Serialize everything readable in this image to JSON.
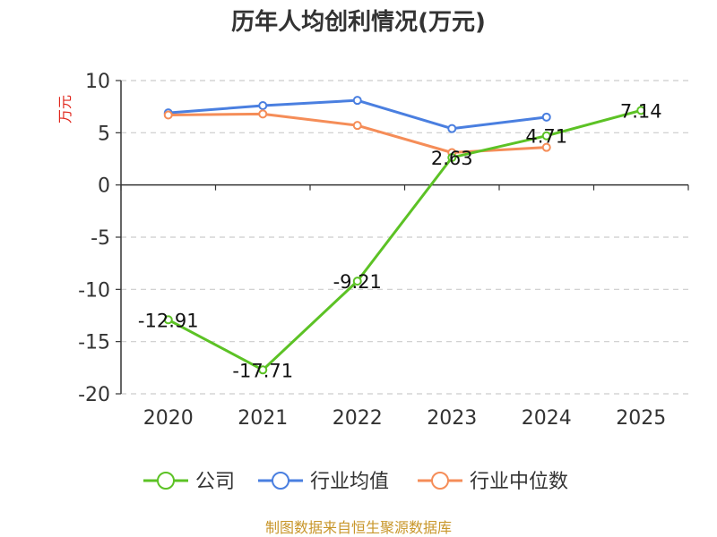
{
  "chart_data": {
    "type": "line",
    "title": "历年人均创利情况(万元)",
    "ylabel": "万元",
    "xlabel": "",
    "categories": [
      "2020",
      "2021",
      "2022",
      "2023",
      "2024",
      "2025"
    ],
    "ylim": [
      -20,
      10
    ],
    "yticks": [
      10,
      5,
      0,
      -5,
      -10,
      -15,
      -20
    ],
    "grid": true,
    "legend_position": "bottom",
    "series": [
      {
        "name": "公司",
        "color": "#5cc225",
        "values": [
          -12.91,
          -17.71,
          -9.21,
          2.63,
          4.71,
          7.14
        ],
        "labels": [
          "-12.91",
          "-17.71",
          "-9.21",
          "2.63",
          "4.71",
          "7.14"
        ]
      },
      {
        "name": "行业均值",
        "color": "#4a7fe0",
        "values": [
          6.9,
          7.6,
          8.1,
          5.4,
          6.5,
          null
        ]
      },
      {
        "name": "行业中位数",
        "color": "#f58d58",
        "values": [
          6.7,
          6.8,
          5.7,
          3.1,
          3.6,
          null
        ]
      }
    ],
    "source": "制图数据来自恒生聚源数据库"
  }
}
